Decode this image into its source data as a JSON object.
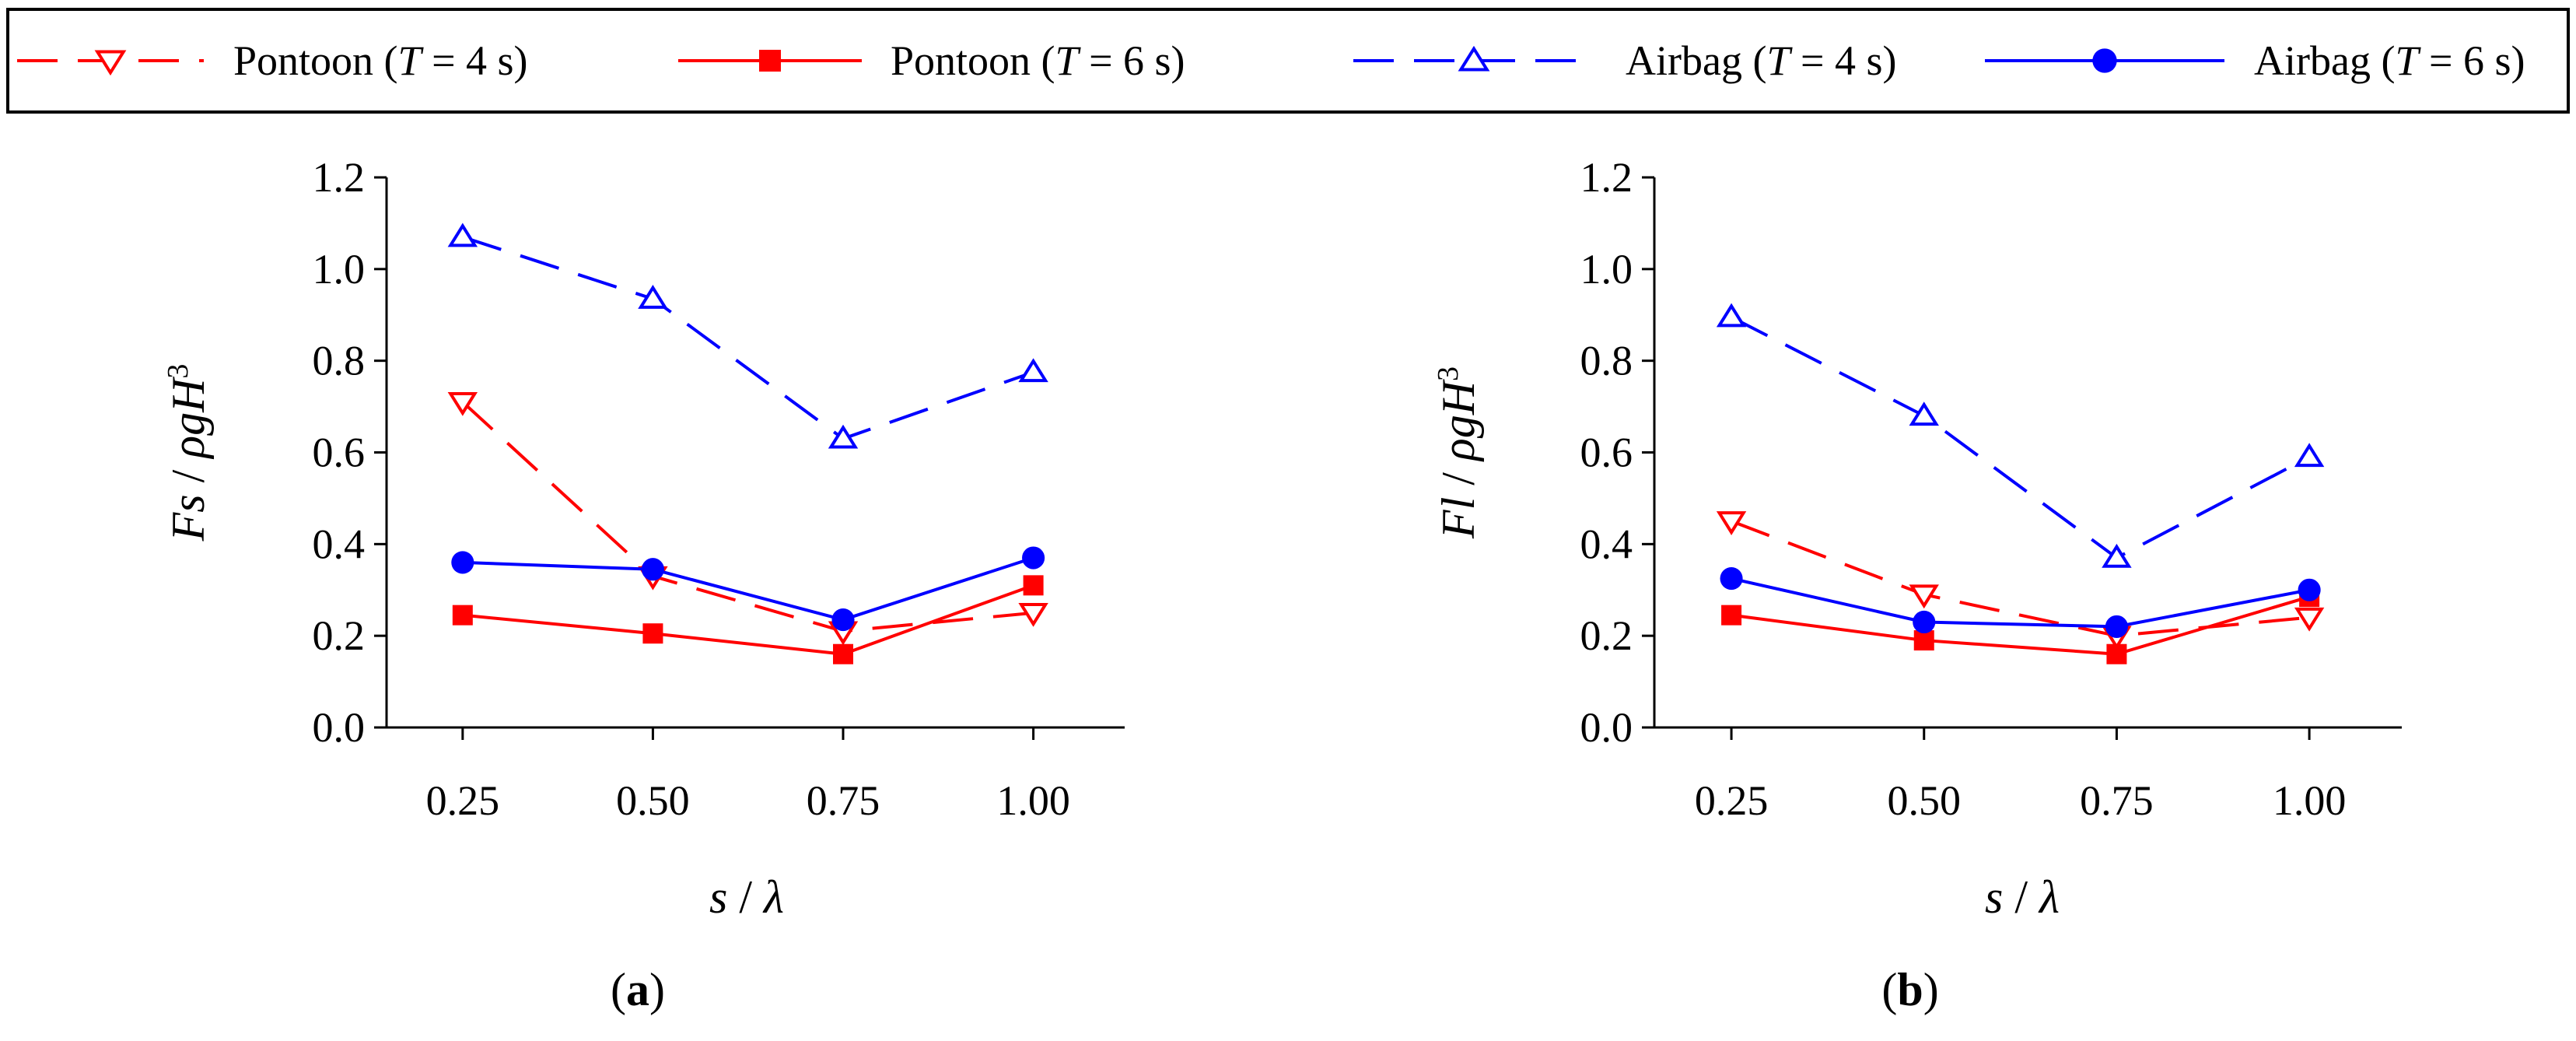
{
  "legend": {
    "items": [
      {
        "series": "pontoon_t4",
        "name": "Pontoon",
        "t_symbol": "T",
        "op": "=",
        "t_value": "4",
        "unit": "s"
      },
      {
        "series": "pontoon_t6",
        "name": "Pontoon",
        "t_symbol": "T",
        "op": "=",
        "t_value": "6",
        "unit": "s"
      },
      {
        "series": "airbag_t4",
        "name": "Airbag",
        "t_symbol": "T",
        "op": "=",
        "t_value": "4",
        "unit": "s"
      },
      {
        "series": "airbag_t6",
        "name": "Airbag",
        "t_symbol": "T",
        "op": "=",
        "t_value": "6",
        "unit": "s"
      }
    ]
  },
  "styles": {
    "pontoon_t4": {
      "color": "#ff0000",
      "dashed": true,
      "marker": "triangle-down-open"
    },
    "pontoon_t6": {
      "color": "#ff0000",
      "dashed": false,
      "marker": "square-filled"
    },
    "airbag_t4": {
      "color": "#0000ff",
      "dashed": true,
      "marker": "triangle-up-open"
    },
    "airbag_t6": {
      "color": "#0000ff",
      "dashed": false,
      "marker": "circle-filled"
    }
  },
  "chart_data": [
    {
      "type": "line",
      "panel_label": "a",
      "xlabel": {
        "v1": "s",
        "sep": "/",
        "v2": "λ"
      },
      "ylabel": {
        "v1": "Fs",
        "sep": "/",
        "v2": "ρgH",
        "sup": "3"
      },
      "x": [
        0.25,
        0.5,
        0.75,
        1.0
      ],
      "x_tick_labels": [
        "0.25",
        "0.50",
        "0.75",
        "1.00"
      ],
      "y_ticks": [
        0.0,
        0.2,
        0.4,
        0.6,
        0.8,
        1.0,
        1.2
      ],
      "y_tick_labels": [
        "0.0",
        "0.2",
        "0.4",
        "0.6",
        "0.8",
        "1.0",
        "1.2"
      ],
      "xlim": [
        0.15,
        1.12
      ],
      "ylim": [
        0.0,
        1.2
      ],
      "series": [
        {
          "key": "pontoon_t4",
          "values": [
            0.71,
            0.33,
            0.21,
            0.25
          ]
        },
        {
          "key": "pontoon_t6",
          "values": [
            0.245,
            0.205,
            0.16,
            0.31
          ]
        },
        {
          "key": "airbag_t4",
          "values": [
            1.07,
            0.935,
            0.63,
            0.775
          ]
        },
        {
          "key": "airbag_t6",
          "values": [
            0.36,
            0.345,
            0.235,
            0.37
          ]
        }
      ]
    },
    {
      "type": "line",
      "panel_label": "b",
      "xlabel": {
        "v1": "s",
        "sep": "/",
        "v2": "λ"
      },
      "ylabel": {
        "v1": "Fl",
        "sep": "/",
        "v2": "ρgH",
        "sup": "3"
      },
      "x": [
        0.25,
        0.5,
        0.75,
        1.0
      ],
      "x_tick_labels": [
        "0.25",
        "0.50",
        "0.75",
        "1.00"
      ],
      "y_ticks": [
        0.0,
        0.2,
        0.4,
        0.6,
        0.8,
        1.0,
        1.2
      ],
      "y_tick_labels": [
        "0.0",
        "0.2",
        "0.4",
        "0.6",
        "0.8",
        "1.0",
        "1.2"
      ],
      "xlim": [
        0.15,
        1.12
      ],
      "ylim": [
        0.0,
        1.2
      ],
      "series": [
        {
          "key": "pontoon_t4",
          "values": [
            0.45,
            0.29,
            0.2,
            0.24
          ]
        },
        {
          "key": "pontoon_t6",
          "values": [
            0.245,
            0.19,
            0.16,
            0.285
          ]
        },
        {
          "key": "airbag_t4",
          "values": [
            0.895,
            0.68,
            0.37,
            0.59
          ]
        },
        {
          "key": "airbag_t6",
          "values": [
            0.325,
            0.23,
            0.22,
            0.3
          ]
        }
      ]
    }
  ]
}
